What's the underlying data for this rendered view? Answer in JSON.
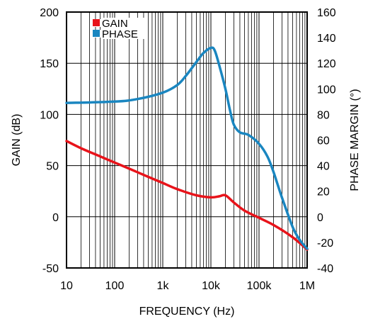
{
  "chart_data": {
    "type": "line",
    "title": "",
    "xlabel": "FREQUENCY (Hz)",
    "ylabel": "GAIN (dB)",
    "y2label": "PHASE MARGIN (°)",
    "x_scale": "log",
    "xlim": [
      10,
      1000000
    ],
    "ylim": [
      -50,
      200
    ],
    "y2lim": [
      -40,
      160
    ],
    "x_ticks": [
      10,
      100,
      1000,
      10000,
      100000,
      1000000
    ],
    "x_tick_labels": [
      "10",
      "100",
      "1k",
      "10k",
      "100k",
      "1M"
    ],
    "y_ticks": [
      -50,
      0,
      50,
      100,
      150,
      200
    ],
    "y_tick_labels": [
      "-50",
      "0",
      "50",
      "100",
      "150",
      "200"
    ],
    "y2_ticks": [
      -40,
      -20,
      0,
      20,
      40,
      60,
      80,
      100,
      120,
      140,
      160
    ],
    "y2_tick_labels": [
      "-40",
      "-20",
      "0",
      "20",
      "40",
      "60",
      "80",
      "100",
      "120",
      "140",
      "160"
    ],
    "grid": true,
    "legend_position": "top-left",
    "series": [
      {
        "name": "GAIN",
        "axis": "left",
        "color": "#e8131a",
        "x": [
          10,
          20,
          50,
          100,
          200,
          500,
          1000,
          2000,
          5000,
          10000,
          15000,
          20000,
          30000,
          50000,
          100000,
          200000,
          500000,
          1000000
        ],
        "y": [
          74,
          67,
          59,
          53,
          47,
          39,
          33,
          27,
          21,
          19,
          20,
          21,
          14,
          6,
          -1,
          -8,
          -20,
          -32
        ]
      },
      {
        "name": "PHASE",
        "axis": "right",
        "color": "#1a86c0",
        "x": [
          10,
          100,
          300,
          1000,
          2000,
          3000,
          5000,
          7000,
          10000,
          12000,
          15000,
          20000,
          25000,
          30000,
          40000,
          60000,
          100000,
          150000,
          200000,
          300000,
          500000,
          700000,
          1000000
        ],
        "y": [
          89,
          90,
          92,
          97,
          103,
          110,
          121,
          128,
          132,
          130,
          118,
          100,
          83,
          72,
          66,
          64,
          57,
          47,
          35,
          15,
          -8,
          -18,
          -25
        ]
      }
    ]
  }
}
